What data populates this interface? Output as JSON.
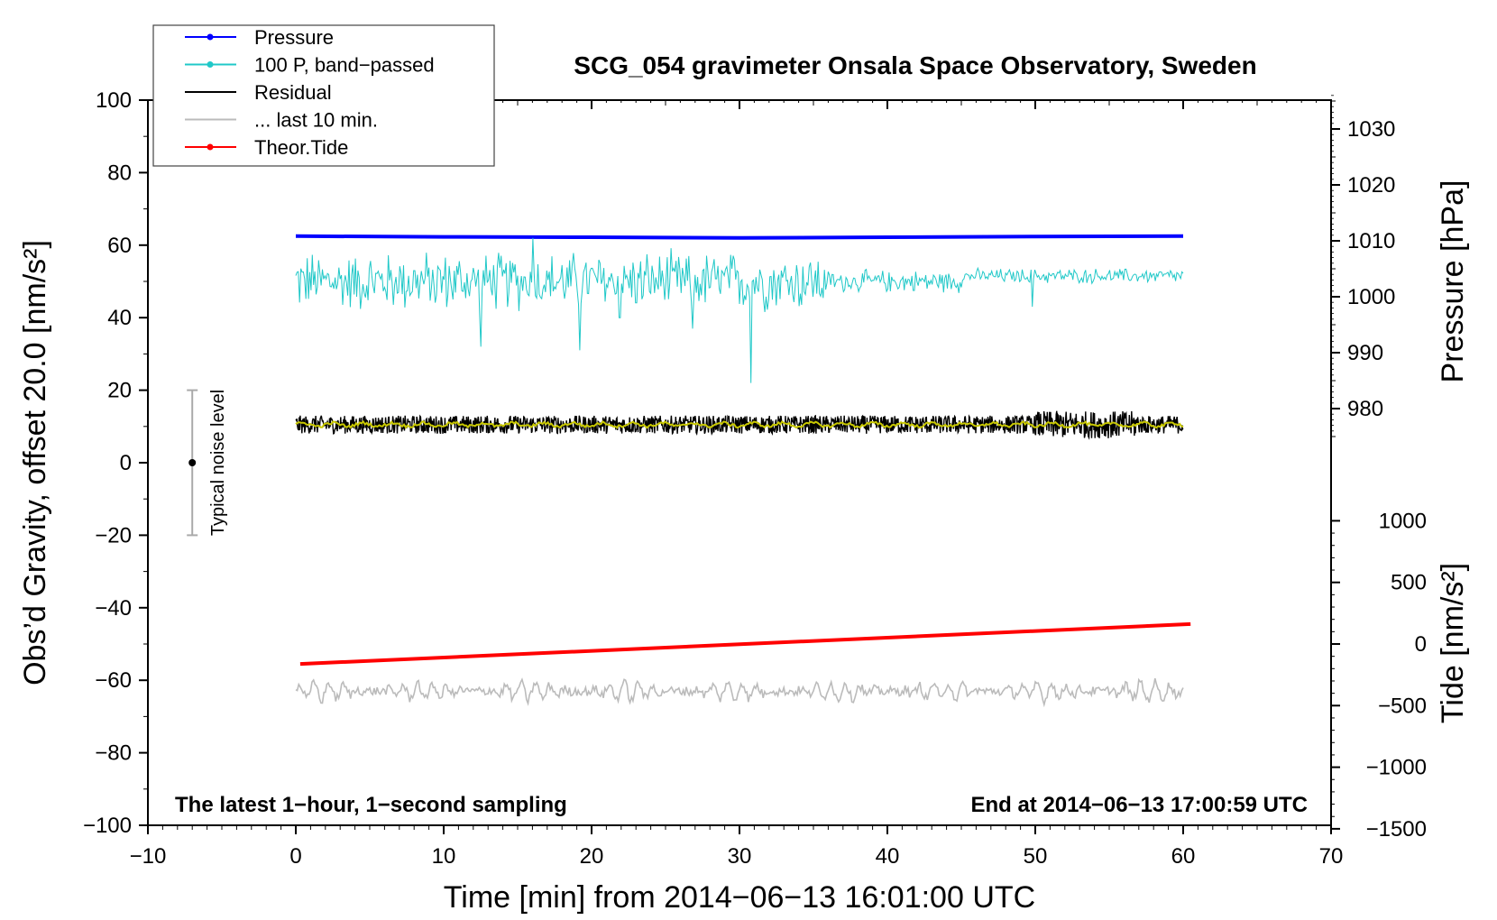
{
  "chart_data": {
    "type": "line",
    "title": "SCG_054 gravimeter Onsala Space Observatory, Sweden",
    "xlabel": "Time [min] from 2014−06−13 16:01:00 UTC",
    "ylabel_left": "Obs’d Gravity, offset 20.0 [nm/s²]",
    "ylabel_pressure": "Pressure [hPa]",
    "ylabel_tide": "Tide [nm/s²]",
    "xlim": [
      -10,
      70
    ],
    "ylim_left": [
      -100,
      100
    ],
    "x_ticks": [
      "−10",
      "0",
      "10",
      "20",
      "30",
      "40",
      "50",
      "60",
      "70"
    ],
    "x_tick_values": [
      -10,
      0,
      10,
      20,
      30,
      40,
      50,
      60,
      70
    ],
    "y_left_ticks": [
      "100",
      "80",
      "60",
      "40",
      "20",
      "0",
      "−20",
      "−40",
      "−60",
      "−80",
      "−100"
    ],
    "y_left_tick_values": [
      100,
      80,
      60,
      40,
      20,
      0,
      -20,
      -40,
      -60,
      -80,
      -100
    ],
    "pressure_ticks": [
      "1030",
      "1020",
      "1010",
      "1000",
      "990",
      "980"
    ],
    "pressure_tick_values": [
      1030,
      1020,
      1010,
      1000,
      990,
      980
    ],
    "tide_ticks": [
      "1000",
      "500",
      "0",
      "−500",
      "−1000",
      "−1500"
    ],
    "tide_tick_values": [
      1000,
      500,
      0,
      -500,
      -1000,
      -1500
    ],
    "legend_placement": "top-left",
    "legend": [
      {
        "label": "Pressure",
        "color": "#0000ff",
        "marker": true
      },
      {
        "label": "100 P, band−passed",
        "color": "#20c8c8",
        "marker": true
      },
      {
        "label": "Residual",
        "color": "#000000",
        "marker": false
      },
      {
        "label": "... last 10 min.",
        "color": "#bbbbbb",
        "marker": false
      },
      {
        "label": "Theor.Tide",
        "color": "#ff0000",
        "marker": true
      }
    ],
    "series": [
      {
        "name": "Pressure",
        "color": "#0000ff",
        "x": [
          0,
          10,
          20,
          30,
          40,
          50,
          60
        ],
        "y_gravity_axis": [
          62.5,
          62.3,
          62.2,
          62.0,
          62.2,
          62.4,
          62.5
        ]
      },
      {
        "name": "100 P, band−passed",
        "color": "#20c8c8",
        "x_range": [
          0,
          60
        ],
        "baseline": 50,
        "amplitude_early": 8,
        "amplitude_late": 2,
        "spikes": [
          [
            12.5,
            32
          ],
          [
            16,
            62
          ],
          [
            19.2,
            31
          ],
          [
            21.9,
            40
          ],
          [
            26.8,
            37
          ],
          [
            30.8,
            22
          ],
          [
            49.8,
            43
          ]
        ]
      },
      {
        "name": "Residual",
        "color": "#000000",
        "x_range": [
          0,
          60
        ],
        "baseline": 10.5,
        "amplitude": 2.5
      },
      {
        "name": "Residual smoothed",
        "color": "#c8c800",
        "x_range": [
          0,
          60
        ],
        "baseline": 10.5,
        "amplitude": 0.8
      },
      {
        "name": "... last 10 min.",
        "color": "#bbbbbb",
        "x_range": [
          0,
          60
        ],
        "baseline": -63,
        "amplitude": 2.5
      },
      {
        "name": "Theor.Tide",
        "color": "#ff0000",
        "x": [
          0.3,
          60.5
        ],
        "y_gravity_axis": [
          -55.5,
          -44.5
        ]
      }
    ],
    "noise_bar": {
      "x": -7,
      "center": 0,
      "low": -20,
      "high": 20,
      "label": "Typical noise level"
    },
    "annotations": {
      "bottom_left": "The latest 1−hour, 1−second sampling",
      "bottom_right": "End at 2014−06−13 17:00:59 UTC"
    }
  }
}
